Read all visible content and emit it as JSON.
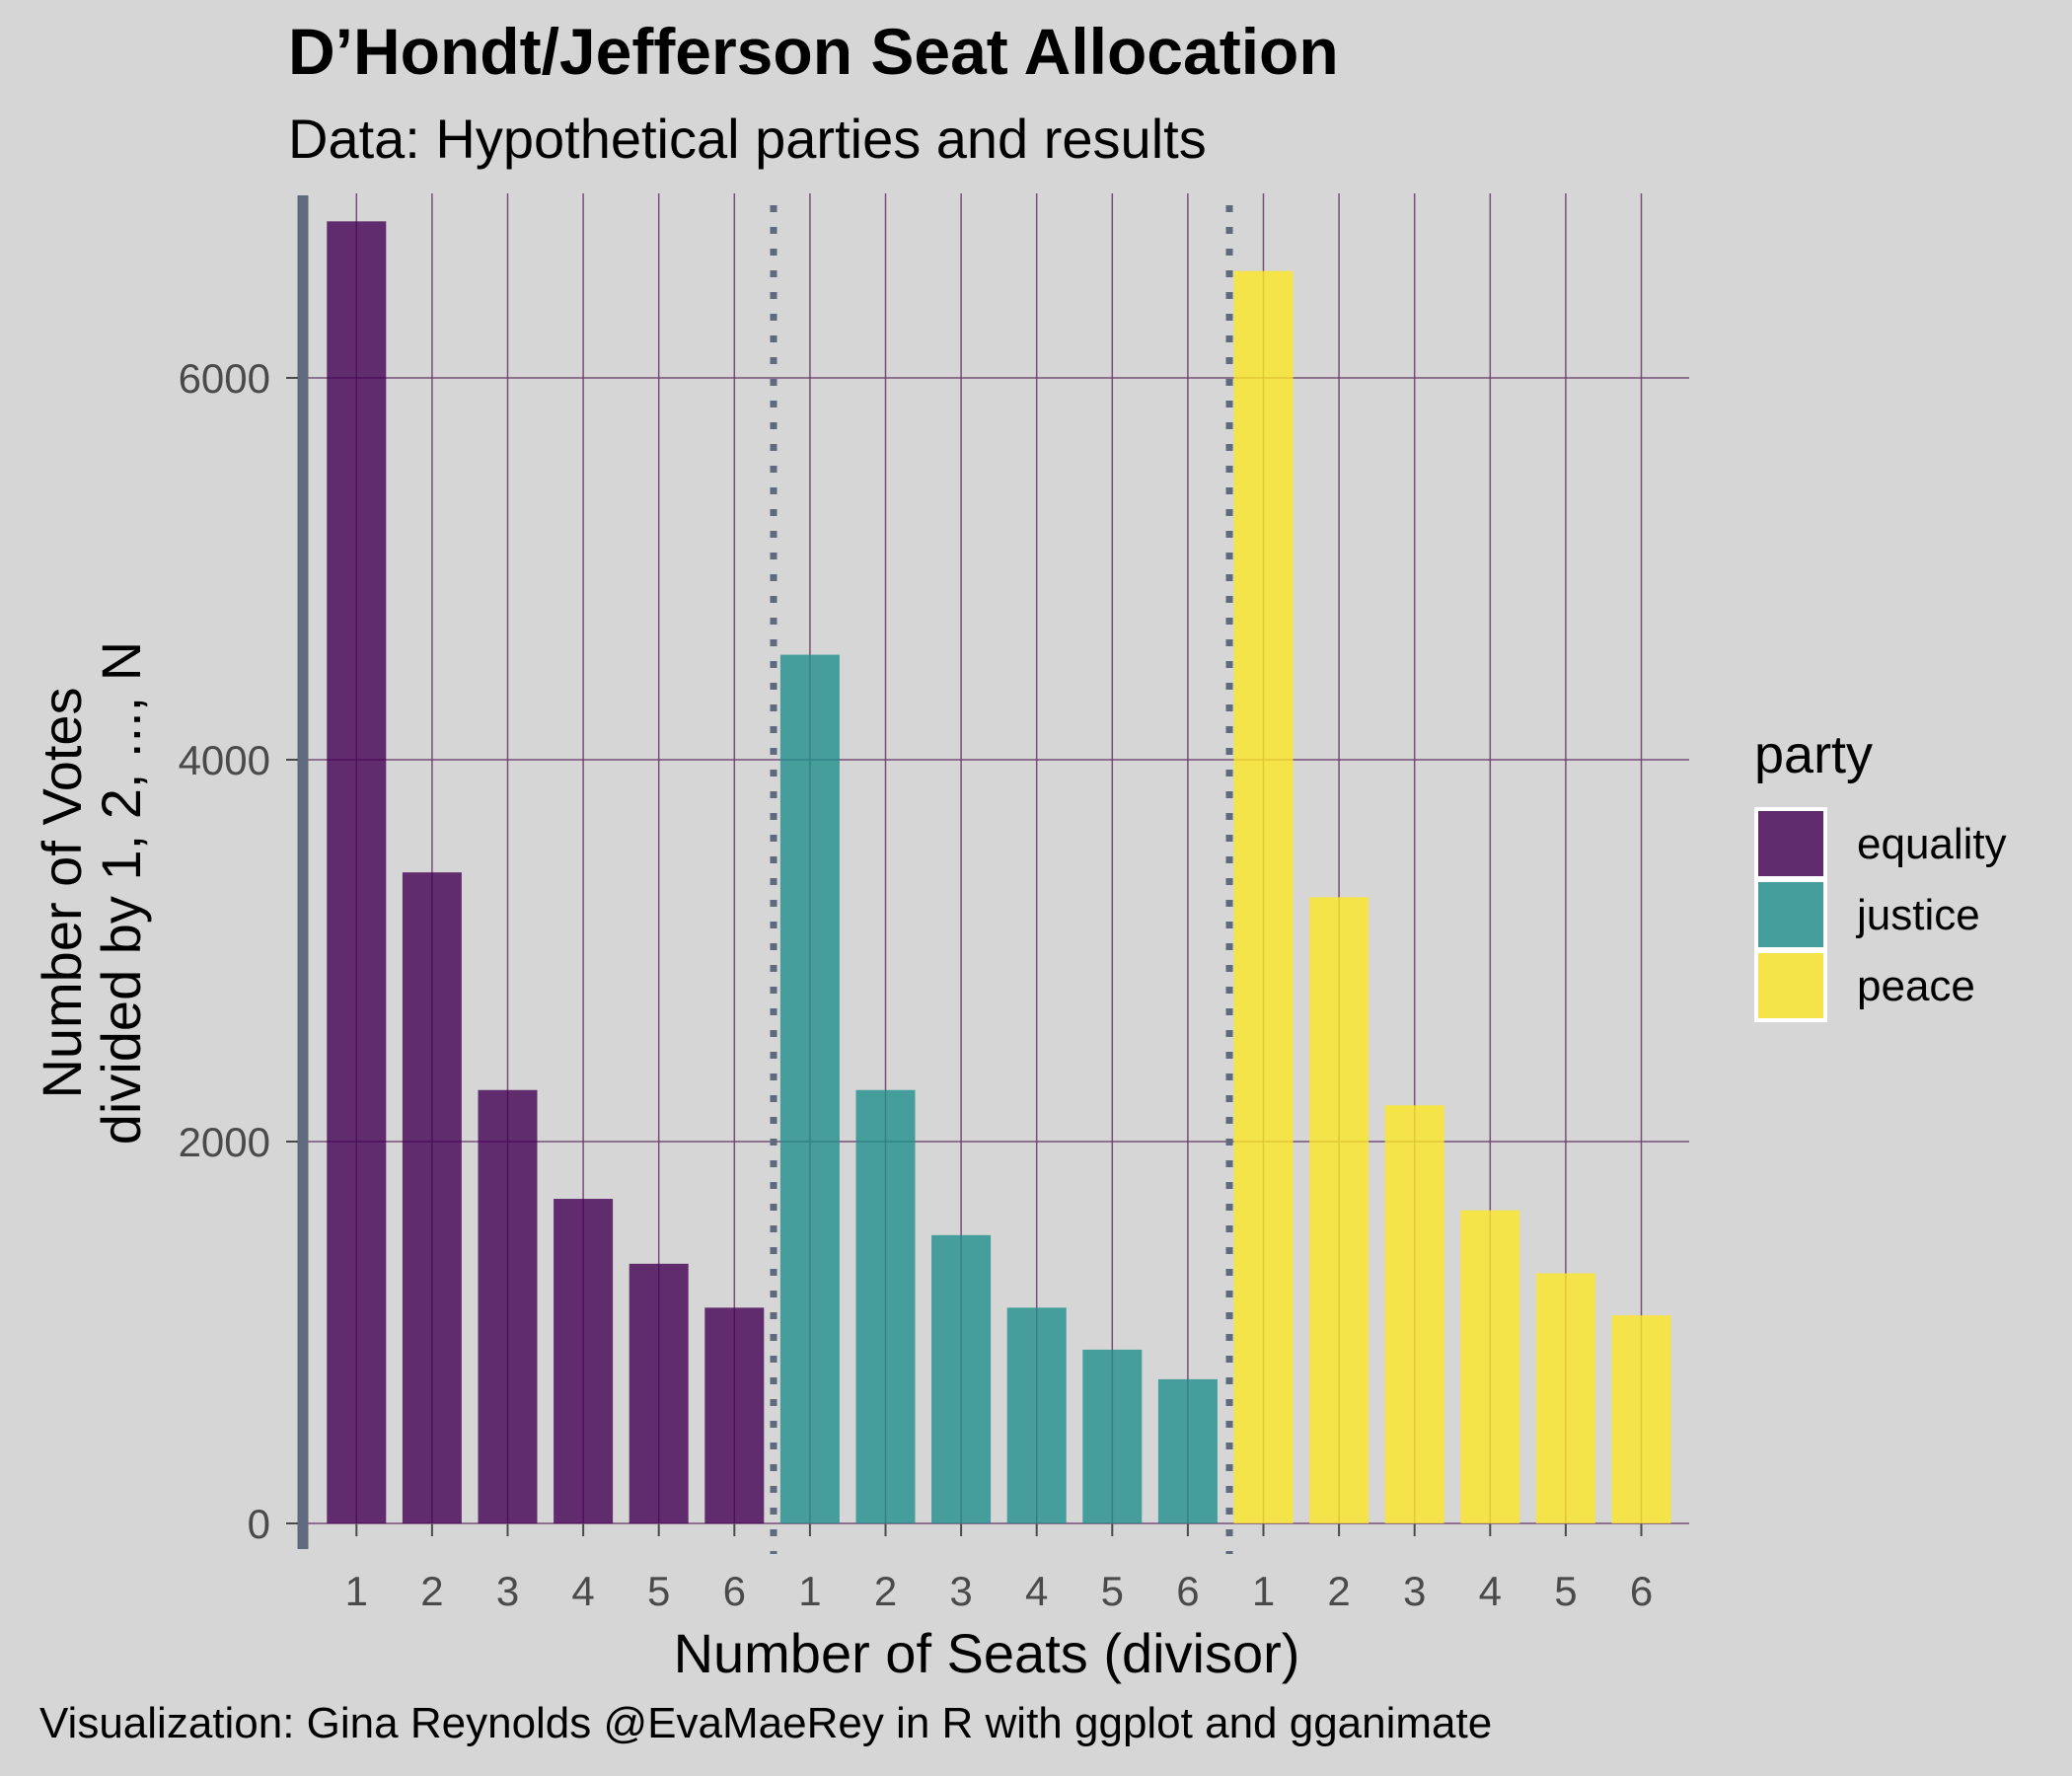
{
  "chart_data": {
    "type": "bar",
    "title": "D’Hondt/Jefferson Seat Allocation",
    "subtitle": "Data: Hypothetical parties and results",
    "caption": "Visualization: Gina Reynolds @EvaMaeRey in R with ggplot and gganimate",
    "xlabel": "Number of Seats (divisor)",
    "ylabel_lines": [
      "Number of Votes",
      "divided by 1, 2, ..., N"
    ],
    "ylim": [
      0,
      6800
    ],
    "y_ticks": [
      0,
      2000,
      4000,
      6000
    ],
    "grid": true,
    "legend": {
      "title": "party",
      "position": "right"
    },
    "series": [
      {
        "name": "equality",
        "color": "#440154",
        "categories": [
          "1",
          "2",
          "3",
          "4",
          "5",
          "6"
        ],
        "values": [
          6820,
          3410,
          2270,
          1700,
          1360,
          1130
        ]
      },
      {
        "name": "justice",
        "color": "#21908C",
        "categories": [
          "1",
          "2",
          "3",
          "4",
          "5",
          "6"
        ],
        "values": [
          4550,
          2270,
          1510,
          1130,
          910,
          755
        ]
      },
      {
        "name": "peace",
        "color": "#FDE725",
        "categories": [
          "1",
          "2",
          "3",
          "4",
          "5",
          "6"
        ],
        "values": [
          6560,
          3280,
          2190,
          1640,
          1310,
          1090
        ]
      }
    ],
    "annotations": {
      "dotted_separators": "between party groups",
      "highlight_line": "left edge"
    }
  },
  "colors": {
    "background": "#d6d6d6",
    "grid": "#6b3f6e",
    "separator": "#5f6b7d"
  }
}
